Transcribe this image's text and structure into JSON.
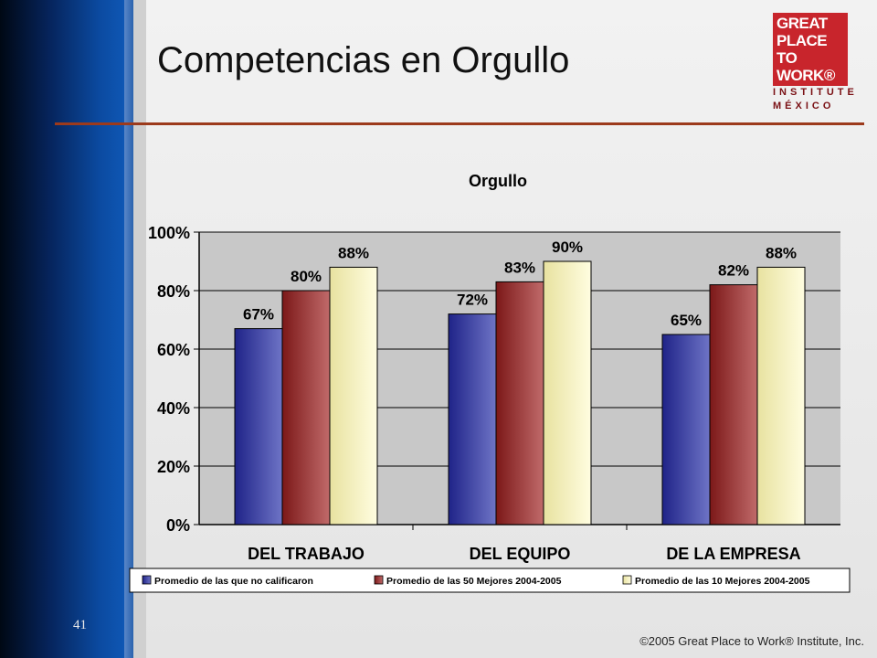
{
  "slide": {
    "title": "Competencias en Orgullo",
    "page_number": "41",
    "copyright": "©2005 Great Place to Work® Institute, Inc."
  },
  "logo": {
    "line1": "GREAT",
    "line2": "PLACE",
    "line3": "TO",
    "line4": "WORK®",
    "sub1": "INSTITUTE",
    "sub2": "MÉXICO"
  },
  "colors": {
    "series1": "#2b2f96",
    "series2": "#8e2424",
    "series3": "#f4f0b8",
    "accent_rule": "#9c3a1c"
  },
  "chart_data": {
    "type": "bar",
    "title": "Orgullo",
    "categories": [
      "DEL TRABAJO",
      "DEL EQUIPO",
      "DE LA EMPRESA"
    ],
    "series": [
      {
        "name": "Promedio de las que no calificaron",
        "values": [
          67,
          72,
          65
        ],
        "labels": [
          "67%",
          "72%",
          "65%"
        ]
      },
      {
        "name": "Promedio de las 50 Mejores 2004-2005",
        "values": [
          80,
          83,
          82
        ],
        "labels": [
          "80%",
          "83%",
          "82%"
        ]
      },
      {
        "name": "Promedio de las 10 Mejores 2004-2005",
        "values": [
          88,
          90,
          88
        ],
        "labels": [
          "88%",
          "90%",
          "88%"
        ]
      }
    ],
    "ylim": [
      0,
      100
    ],
    "yticks": [
      "0%",
      "20%",
      "40%",
      "60%",
      "80%",
      "100%"
    ],
    "grid": true,
    "legend": "bottom"
  }
}
